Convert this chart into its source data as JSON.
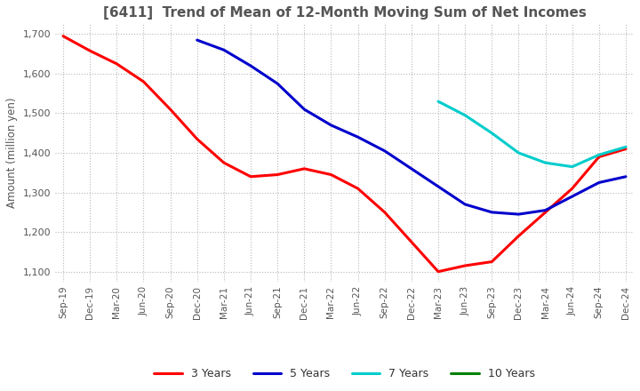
{
  "title": "[6411]  Trend of Mean of 12-Month Moving Sum of Net Incomes",
  "ylabel": "Amount (million yen)",
  "ylim": [
    1075,
    1725
  ],
  "yticks": [
    1100,
    1200,
    1300,
    1400,
    1500,
    1600,
    1700
  ],
  "background_color": "#ffffff",
  "grid_color": "#b0b0b0",
  "legend_labels": [
    "3 Years",
    "5 Years",
    "7 Years",
    "10 Years"
  ],
  "legend_colors": [
    "#ff0000",
    "#0000cc",
    "#00cccc",
    "#008000"
  ],
  "x_labels": [
    "Sep-19",
    "Dec-19",
    "Mar-20",
    "Jun-20",
    "Sep-20",
    "Dec-20",
    "Mar-21",
    "Jun-21",
    "Sep-21",
    "Dec-21",
    "Mar-22",
    "Jun-22",
    "Sep-22",
    "Dec-22",
    "Mar-23",
    "Jun-23",
    "Sep-23",
    "Dec-23",
    "Mar-24",
    "Jun-24",
    "Sep-24",
    "Dec-24"
  ],
  "series": {
    "3yr": [
      1695,
      1658,
      1625,
      1580,
      1510,
      1435,
      1375,
      1340,
      1345,
      1360,
      1345,
      1310,
      1250,
      1175,
      1100,
      1115,
      1125,
      1190,
      1250,
      1310,
      1390,
      1410
    ],
    "5yr": [
      null,
      null,
      null,
      null,
      null,
      1685,
      1660,
      1620,
      1575,
      1510,
      1470,
      1440,
      1405,
      1360,
      1315,
      1270,
      1250,
      1245,
      1255,
      1290,
      1325,
      1340
    ],
    "7yr": [
      null,
      null,
      null,
      null,
      null,
      null,
      null,
      null,
      null,
      null,
      null,
      null,
      null,
      null,
      1530,
      1495,
      1450,
      1400,
      1375,
      1365,
      1395,
      1415
    ],
    "10yr": [
      null,
      null,
      null,
      null,
      null,
      null,
      null,
      null,
      null,
      null,
      null,
      null,
      null,
      null,
      null,
      null,
      null,
      null,
      null,
      null,
      null,
      null
    ]
  }
}
